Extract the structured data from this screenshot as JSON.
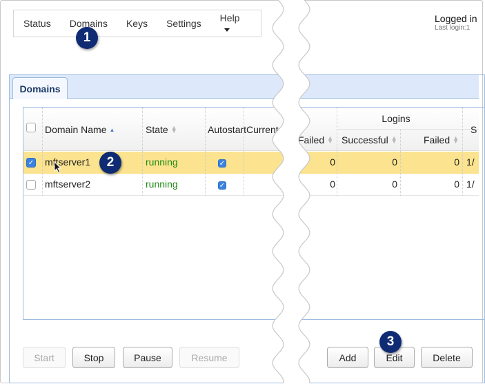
{
  "nav": {
    "items": [
      "Status",
      "Domains",
      "Keys",
      "Settings",
      "Help"
    ]
  },
  "user": {
    "logged_in": "Logged in",
    "last_login": "Last login:1"
  },
  "tab": {
    "label": "Domains"
  },
  "table": {
    "group_header": "Logins",
    "columns_left": [
      "Domain Name",
      "State",
      "Autostart",
      "Current"
    ],
    "columns_right": [
      "Failed",
      "Successful",
      "Failed",
      "S"
    ],
    "rows": [
      {
        "selected": true,
        "name": "mftserver1",
        "state": "running",
        "autostart": true,
        "failed1": "0",
        "successful": "0",
        "failed2": "0",
        "s": "1/"
      },
      {
        "selected": false,
        "name": "mftserver2",
        "state": "running",
        "autostart": true,
        "failed1": "0",
        "successful": "0",
        "failed2": "0",
        "s": "1/"
      }
    ]
  },
  "buttons": {
    "start": "Start",
    "stop": "Stop",
    "pause": "Pause",
    "resume": "Resume",
    "add": "Add",
    "edit": "Edit",
    "delete": "Delete"
  },
  "callouts": [
    "1",
    "2",
    "3"
  ],
  "colors": {
    "callout": "#0f2b73",
    "selected_row": "#fbe38f",
    "running": "#1f8a14"
  }
}
